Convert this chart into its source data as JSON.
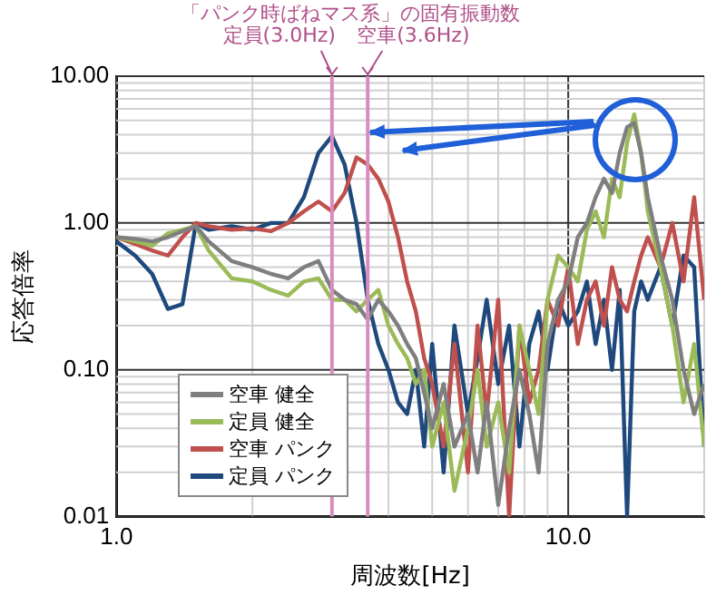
{
  "chart_data": {
    "type": "line",
    "xlabel": "周波数[Hz]",
    "ylabel": "応答倍率",
    "annotations": [
      "「パンク時ばねマス系」の固有振動数"
    ],
    "x": [
      1.0,
      1.1,
      1.2,
      1.3,
      1.4,
      1.5,
      1.6,
      1.8,
      2.0,
      2.2,
      2.4,
      2.6,
      2.8,
      3.0,
      3.2,
      3.4,
      3.6,
      3.8,
      4.0,
      4.2,
      4.4,
      4.6,
      4.8,
      5.0,
      5.3,
      5.6,
      6.0,
      6.3,
      6.6,
      7.0,
      7.4,
      7.8,
      8.2,
      8.6,
      9.0,
      9.5,
      10,
      10.5,
      11,
      11.5,
      12,
      12.5,
      13,
      13.5,
      14,
      14.5,
      15,
      16,
      17,
      18,
      19,
      20
    ],
    "series": [
      {
        "name": "空車 健全",
        "color": "#7f7f7f",
        "values": [
          0.8,
          0.78,
          0.75,
          0.8,
          0.88,
          0.95,
          0.75,
          0.55,
          0.5,
          0.45,
          0.42,
          0.5,
          0.55,
          0.35,
          0.3,
          0.28,
          0.22,
          0.3,
          0.25,
          0.2,
          0.15,
          0.12,
          0.07,
          0.04,
          0.08,
          0.03,
          0.05,
          0.02,
          0.06,
          0.012,
          0.04,
          0.1,
          0.05,
          0.02,
          0.15,
          0.3,
          0.4,
          0.8,
          1.0,
          1.5,
          2.0,
          1.6,
          3.0,
          4.5,
          4.8,
          3.0,
          1.5,
          0.6,
          0.3,
          0.1,
          0.05,
          0.08
        ]
      },
      {
        "name": "定員 健全",
        "color": "#9bbb59",
        "values": [
          0.8,
          0.75,
          0.7,
          0.85,
          0.9,
          0.95,
          0.65,
          0.42,
          0.4,
          0.35,
          0.32,
          0.4,
          0.42,
          0.3,
          0.3,
          0.25,
          0.3,
          0.35,
          0.2,
          0.15,
          0.12,
          0.08,
          0.1,
          0.03,
          0.06,
          0.015,
          0.04,
          0.1,
          0.03,
          0.06,
          0.02,
          0.2,
          0.1,
          0.05,
          0.3,
          0.6,
          0.5,
          0.4,
          0.9,
          1.2,
          0.8,
          2.0,
          1.5,
          3.5,
          5.5,
          3.0,
          1.2,
          0.5,
          0.2,
          0.06,
          0.15,
          0.03
        ]
      },
      {
        "name": "空車 パンク",
        "color": "#c0504d",
        "values": [
          0.8,
          0.72,
          0.65,
          0.6,
          0.8,
          1.0,
          0.95,
          0.9,
          0.92,
          0.88,
          1.0,
          1.2,
          1.4,
          1.2,
          1.6,
          2.8,
          2.5,
          2.0,
          1.4,
          0.8,
          0.4,
          0.25,
          0.12,
          0.08,
          0.03,
          0.15,
          0.02,
          0.2,
          0.05,
          0.3,
          0.01,
          0.2,
          0.06,
          0.1,
          0.3,
          0.2,
          0.5,
          0.15,
          0.3,
          0.4,
          0.2,
          0.5,
          0.3,
          0.25,
          0.4,
          0.6,
          0.8,
          0.5,
          1.0,
          0.4,
          1.5,
          0.3
        ]
      },
      {
        "name": "定員 パンク",
        "color": "#1f497d",
        "values": [
          0.75,
          0.6,
          0.45,
          0.26,
          0.28,
          1.0,
          0.9,
          0.95,
          0.9,
          1.0,
          1.0,
          1.5,
          3.0,
          3.9,
          2.5,
          1.0,
          0.3,
          0.15,
          0.1,
          0.06,
          0.05,
          0.1,
          0.03,
          0.15,
          0.02,
          0.2,
          0.05,
          0.12,
          0.3,
          0.08,
          0.2,
          0.03,
          0.15,
          0.25,
          0.1,
          0.3,
          0.2,
          0.25,
          0.4,
          0.15,
          0.3,
          0.1,
          0.35,
          0.01,
          0.25,
          0.4,
          0.3,
          0.5,
          0.2,
          0.6,
          0.5,
          0.03
        ]
      }
    ],
    "log": "xy",
    "xlim": [
      1,
      20
    ],
    "xticks": [
      {
        "value": 1,
        "label": "1.0"
      },
      {
        "value": 10,
        "label": "10.0"
      }
    ],
    "ylim": [
      0.01,
      10
    ],
    "yticks": [
      {
        "value": 0.01,
        "label": "0.01"
      },
      {
        "value": 0.1,
        "label": "0.10"
      },
      {
        "value": 1,
        "label": "1.00"
      },
      {
        "value": 10,
        "label": "10.00"
      }
    ],
    "ref_lines": [
      {
        "axis": "x",
        "value": 3.0,
        "label": "定員(3.0Hz)",
        "color": "#d98cc0"
      },
      {
        "axis": "x",
        "value": 3.6,
        "label": "空車(3.6Hz)",
        "color": "#d98cc0"
      }
    ],
    "grid": true,
    "legend": "bottom left",
    "marker": "none",
    "line_style": "solid"
  }
}
